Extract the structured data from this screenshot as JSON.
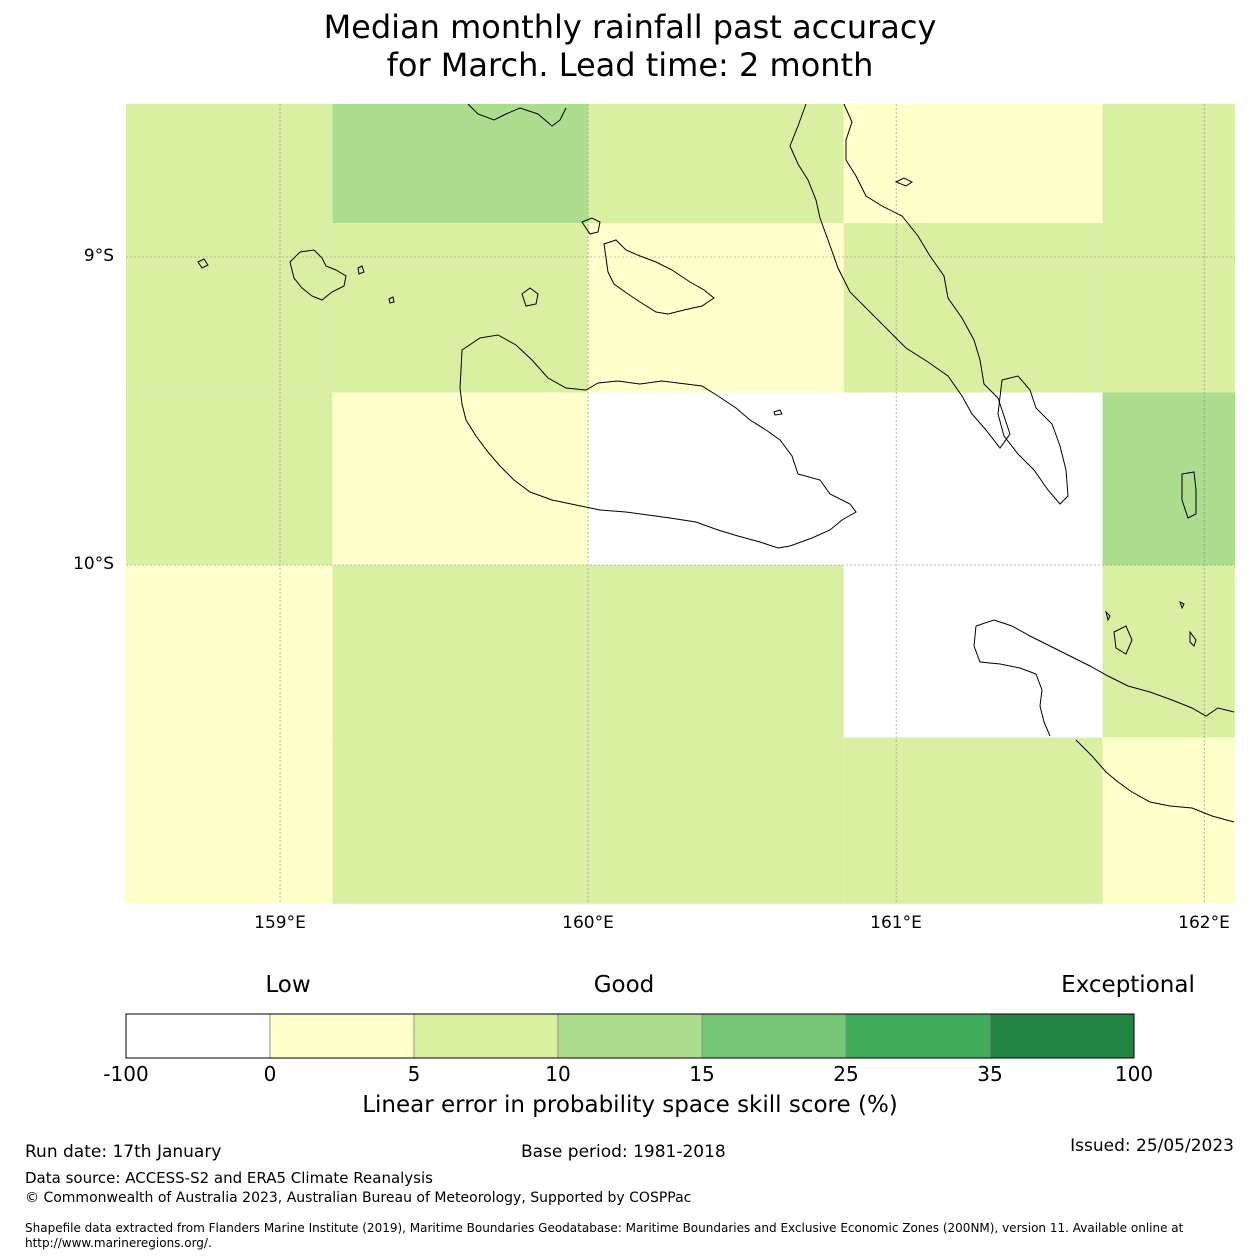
{
  "title": {
    "line1": "Median monthly rainfall past accuracy",
    "line2": "for March. Lead time: 2 month"
  },
  "map": {
    "region": "Solomon Islands (Guadalcanal, Malaita)",
    "lon_range": [
      158.5,
      162.1
    ],
    "lat_range": [
      -11.1,
      -8.5
    ],
    "lat_labels": [
      "9°S",
      "10°S"
    ],
    "lon_labels": [
      "159°E",
      "160°E",
      "161°E",
      "162°E"
    ],
    "grid_lines": true,
    "cells": [
      {
        "lon": [
          158.5,
          159.17
        ],
        "lat": [
          -8.5,
          -8.89
        ],
        "category": "5-10"
      },
      {
        "lon": [
          159.17,
          160.0
        ],
        "lat": [
          -8.5,
          -8.89
        ],
        "category": "10-15"
      },
      {
        "lon": [
          160.0,
          160.83
        ],
        "lat": [
          -8.5,
          -8.89
        ],
        "category": "5-10"
      },
      {
        "lon": [
          160.83,
          161.67
        ],
        "lat": [
          -8.5,
          -8.89
        ],
        "category": "0-5"
      },
      {
        "lon": [
          161.67,
          162.1
        ],
        "lat": [
          -8.5,
          -8.89
        ],
        "category": "5-10"
      },
      {
        "lon": [
          158.5,
          159.17
        ],
        "lat": [
          -8.89,
          -9.44
        ],
        "category": "5-10"
      },
      {
        "lon": [
          159.17,
          160.0
        ],
        "lat": [
          -8.89,
          -9.44
        ],
        "category": "5-10"
      },
      {
        "lon": [
          160.0,
          160.83
        ],
        "lat": [
          -8.89,
          -9.44
        ],
        "category": "0-5"
      },
      {
        "lon": [
          160.83,
          161.67
        ],
        "lat": [
          -8.89,
          -9.44
        ],
        "category": "5-10"
      },
      {
        "lon": [
          161.67,
          162.1
        ],
        "lat": [
          -8.89,
          -9.44
        ],
        "category": "5-10"
      },
      {
        "lon": [
          158.5,
          159.17
        ],
        "lat": [
          -9.44,
          -10.0
        ],
        "category": "5-10"
      },
      {
        "lon": [
          159.17,
          160.0
        ],
        "lat": [
          -9.44,
          -10.0
        ],
        "category": "0-5"
      },
      {
        "lon": [
          160.0,
          160.83
        ],
        "lat": [
          -9.44,
          -10.0
        ],
        "category": "-100-0"
      },
      {
        "lon": [
          160.83,
          161.67
        ],
        "lat": [
          -9.44,
          -10.0
        ],
        "category": "-100-0"
      },
      {
        "lon": [
          161.67,
          162.1
        ],
        "lat": [
          -9.44,
          -10.0
        ],
        "category": "10-15"
      },
      {
        "lon": [
          158.5,
          159.17
        ],
        "lat": [
          -10.0,
          -10.56
        ],
        "category": "0-5"
      },
      {
        "lon": [
          159.17,
          160.0
        ],
        "lat": [
          -10.0,
          -10.56
        ],
        "category": "5-10"
      },
      {
        "lon": [
          160.0,
          160.83
        ],
        "lat": [
          -10.0,
          -10.56
        ],
        "category": "5-10"
      },
      {
        "lon": [
          160.83,
          161.67
        ],
        "lat": [
          -10.0,
          -10.56
        ],
        "category": "-100-0"
      },
      {
        "lon": [
          161.67,
          162.1
        ],
        "lat": [
          -10.0,
          -10.56
        ],
        "category": "5-10"
      },
      {
        "lon": [
          158.5,
          159.17
        ],
        "lat": [
          -10.56,
          -11.1
        ],
        "category": "0-5"
      },
      {
        "lon": [
          159.17,
          160.0
        ],
        "lat": [
          -10.56,
          -11.1
        ],
        "category": "5-10"
      },
      {
        "lon": [
          160.0,
          160.83
        ],
        "lat": [
          -10.56,
          -11.1
        ],
        "category": "5-10"
      },
      {
        "lon": [
          160.83,
          161.67
        ],
        "lat": [
          -10.56,
          -11.1
        ],
        "category": "5-10"
      },
      {
        "lon": [
          161.67,
          162.1
        ],
        "lat": [
          -10.56,
          -11.1
        ],
        "category": "0-5"
      }
    ]
  },
  "colorbar": {
    "categories": [
      "Low",
      "Good",
      "Exceptional"
    ],
    "ticks": [
      "-100",
      "0",
      "5",
      "10",
      "15",
      "25",
      "35",
      "100"
    ],
    "colors": [
      "#ffffff",
      "#ffffcc",
      "#d9f0a3",
      "#addd8e",
      "#78c679",
      "#41ab5d",
      "#238443"
    ],
    "title": "Linear error in probability space skill score (%)"
  },
  "footer": {
    "run_date": "Run date: 17th January",
    "base_period": "Base period: 1981-2018",
    "issued": "Issued: 25/05/2023",
    "data_source": "Data source: ACCESS-S2 and ERA5 Climate Reanalysis",
    "copyright": "© Commonwealth of Australia 2023, Australian Bureau of Meteorology, Supported by COSPPac",
    "shapefile": "Shapefile data extracted from Flanders Marine Institute (2019), Maritime Boundaries Geodatabase: Maritime Boundaries and Exclusive Economic Zones (200NM), version 11. Available online at http://www.marineregions.org/."
  }
}
